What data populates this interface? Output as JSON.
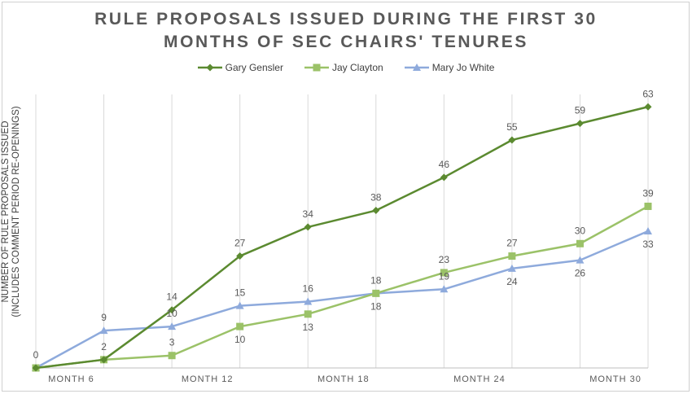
{
  "chart_data": {
    "type": "line",
    "title_line1": "RULE PROPOSALS ISSUED DURING THE FIRST 30",
    "title_line2": "MONTHS OF SEC CHAIRS' TENURES",
    "ylabel_line1": "NUMBER OF RULE PROPOSALS ISSUED",
    "ylabel_line2": "(INCLUDES COMMENT PERIOD RE-OPENINGS)",
    "xlabel": "",
    "x": [
      3,
      6,
      9,
      12,
      15,
      18,
      21,
      24,
      27,
      30
    ],
    "x_tick_labels": [
      {
        "x": 6,
        "label": "MONTH 6"
      },
      {
        "x": 12,
        "label": "MONTH 12"
      },
      {
        "x": 18,
        "label": "MONTH 18"
      },
      {
        "x": 24,
        "label": "MONTH 24"
      },
      {
        "x": 30,
        "label": "MONTH 30"
      }
    ],
    "xlim": [
      3,
      30
    ],
    "ylim": [
      0,
      66
    ],
    "grid": "vertical",
    "legend_position": "top",
    "series": [
      {
        "name": "Gary Gensler",
        "color": "#5b8a30",
        "marker": "diamond",
        "values": [
          0,
          2,
          14,
          27,
          34,
          38,
          46,
          55,
          59,
          63
        ],
        "labels": [
          "",
          "",
          "14",
          "27",
          "34",
          "38",
          "46",
          "55",
          "59",
          "63"
        ]
      },
      {
        "name": "Jay Clayton",
        "color": "#9bc268",
        "marker": "square",
        "values": [
          0,
          2,
          3,
          10,
          13,
          18,
          23,
          27,
          30,
          39
        ],
        "labels": [
          "",
          "2",
          "3",
          "10",
          "13",
          "18",
          "23",
          "27",
          "30",
          "39"
        ]
      },
      {
        "name": "Mary Jo White",
        "color": "#8eaadc",
        "marker": "triangle",
        "values": [
          0,
          9,
          10,
          15,
          16,
          18,
          19,
          24,
          26,
          33
        ],
        "labels": [
          "0",
          "9",
          "10",
          "15",
          "16",
          "18",
          "19",
          "24",
          "26",
          "33"
        ]
      }
    ]
  }
}
